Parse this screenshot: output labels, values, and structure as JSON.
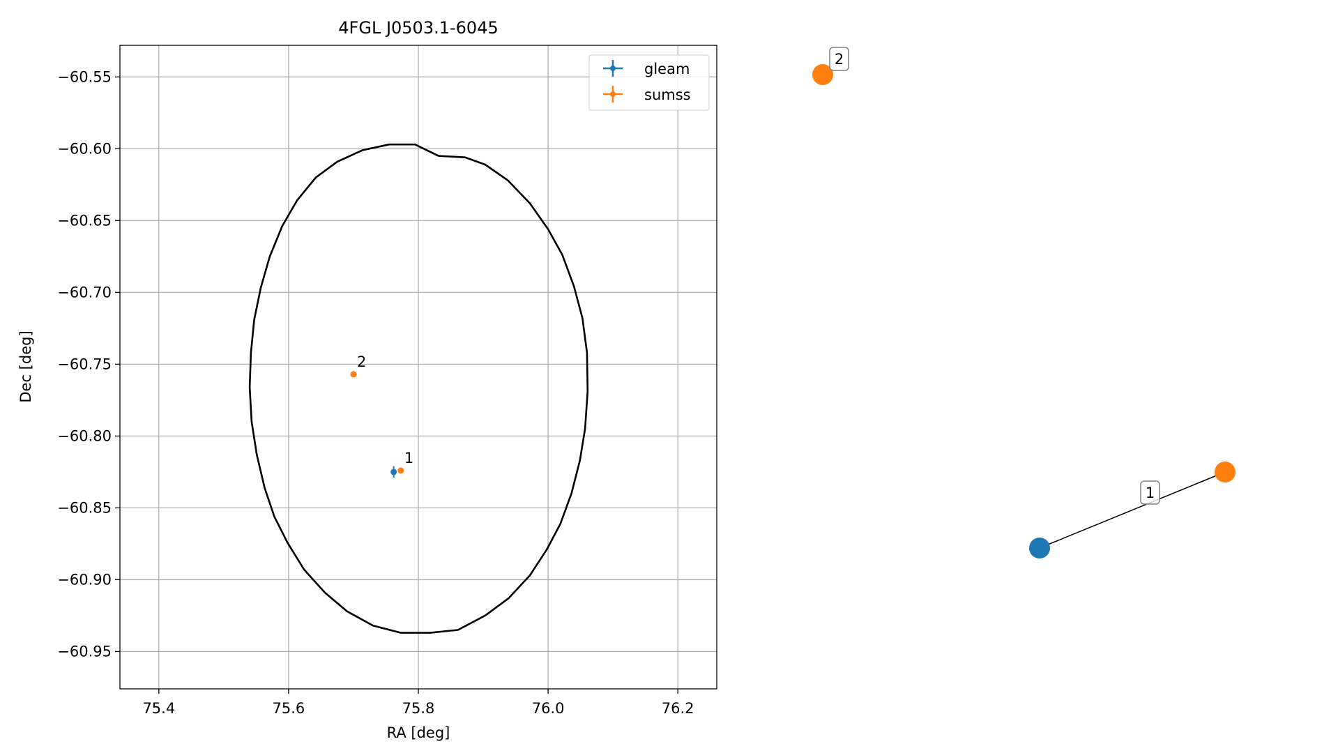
{
  "chart_data": [
    {
      "type": "scatter",
      "title": "4FGL J0503.1-6045",
      "xlabel": "RA [deg]",
      "ylabel": "Dec [deg]",
      "xlim": [
        75.34,
        76.26
      ],
      "ylim": [
        -60.976,
        -60.528
      ],
      "xticks": [
        75.4,
        75.6,
        75.8,
        76.0,
        76.2
      ],
      "xtick_labels": [
        "75.4",
        "75.6",
        "75.8",
        "76.0",
        "76.2"
      ],
      "yticks": [
        -60.55,
        -60.6,
        -60.65,
        -60.7,
        -60.75,
        -60.8,
        -60.85,
        -60.9,
        -60.95
      ],
      "ytick_labels": [
        "−60.55",
        "−60.60",
        "−60.65",
        "−60.70",
        "−60.75",
        "−60.80",
        "−60.85",
        "−60.90",
        "−60.95"
      ],
      "grid": true,
      "legend_position": "top-right",
      "series": [
        {
          "name": "gleam",
          "color": "#1f77b4",
          "points": [
            {
              "x": 75.762,
              "y": -60.825,
              "xerr": 0.003,
              "yerr": 0.004,
              "label": ""
            }
          ]
        },
        {
          "name": "sumss",
          "color": "#ff7f0e",
          "points": [
            {
              "x": 75.773,
              "y": -60.824,
              "xerr": 0.0,
              "yerr": 0.0,
              "label": "1"
            },
            {
              "x": 75.7,
              "y": -60.757,
              "xerr": 0.0,
              "yerr": 0.0,
              "label": "2"
            }
          ]
        }
      ],
      "ellipse": {
        "color": "#000000",
        "points": [
          [
            75.831,
            -60.605
          ],
          [
            75.872,
            -60.606
          ],
          [
            75.903,
            -60.611
          ],
          [
            75.938,
            -60.622
          ],
          [
            75.972,
            -60.638
          ],
          [
            76.0,
            -60.656
          ],
          [
            76.022,
            -60.674
          ],
          [
            76.04,
            -60.696
          ],
          [
            76.053,
            -60.718
          ],
          [
            76.06,
            -60.742
          ],
          [
            76.061,
            -60.769
          ],
          [
            76.057,
            -60.795
          ],
          [
            76.049,
            -60.817
          ],
          [
            76.036,
            -60.84
          ],
          [
            76.019,
            -60.861
          ],
          [
            75.998,
            -60.879
          ],
          [
            75.972,
            -60.897
          ],
          [
            75.939,
            -60.913
          ],
          [
            75.903,
            -60.925
          ],
          [
            75.861,
            -60.935
          ],
          [
            75.818,
            -60.937
          ],
          [
            75.773,
            -60.937
          ],
          [
            75.73,
            -60.932
          ],
          [
            75.69,
            -60.922
          ],
          [
            75.656,
            -60.909
          ],
          [
            75.624,
            -60.893
          ],
          [
            75.598,
            -60.874
          ],
          [
            75.578,
            -60.856
          ],
          [
            75.563,
            -60.836
          ],
          [
            75.551,
            -60.813
          ],
          [
            75.543,
            -60.79
          ],
          [
            75.54,
            -60.766
          ],
          [
            75.542,
            -60.742
          ],
          [
            75.547,
            -60.719
          ],
          [
            75.557,
            -60.697
          ],
          [
            75.571,
            -60.675
          ],
          [
            75.59,
            -60.654
          ],
          [
            75.613,
            -60.636
          ],
          [
            75.642,
            -60.62
          ],
          [
            75.675,
            -60.609
          ],
          [
            75.714,
            -60.601
          ],
          [
            75.755,
            -60.597
          ],
          [
            75.795,
            -60.597
          ],
          [
            75.831,
            -60.605
          ]
        ]
      }
    },
    {
      "type": "graph",
      "nodes": [
        {
          "id": "n1",
          "label": "2",
          "color": "#ff7f0e"
        },
        {
          "id": "n2",
          "label": "",
          "color": "#1f77b4"
        },
        {
          "id": "n3",
          "label": "",
          "color": "#ff7f0e"
        }
      ],
      "edges": [
        {
          "from": "n2",
          "to": "n3",
          "label": "1",
          "color": "#000000"
        }
      ]
    }
  ]
}
